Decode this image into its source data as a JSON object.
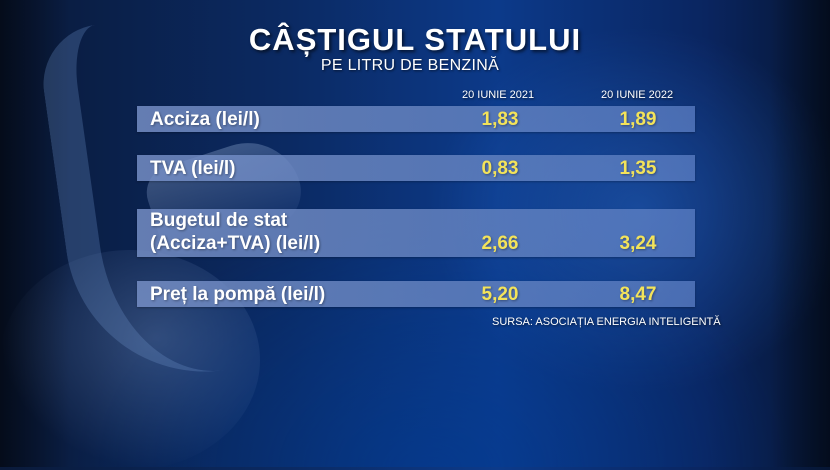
{
  "title": "CÂȘTIGUL STATULUI",
  "subtitle": "PE LITRU DE BENZINĂ",
  "columns": [
    "20 IUNIE 2021",
    "20 IUNIE 2022"
  ],
  "rows": [
    {
      "label": "Acciza (lei/l)",
      "v2021": "1,83",
      "v2022": "1,89"
    },
    {
      "label": "TVA (lei/l)",
      "v2021": "0,83",
      "v2022": "1,35"
    },
    {
      "label_line1": "Bugetul de stat",
      "label_line2": "(Acciza+TVA) (lei/l)",
      "v2021": "2,66",
      "v2022": "3,24"
    },
    {
      "label": "Preț la pompă (lei/l)",
      "v2021": "5,20",
      "v2022": "8,47"
    }
  ],
  "source": "SURSA: ASOCIAȚIA ENERGIA INTELIGENTĂ",
  "colors": {
    "label_text": "#ffffff",
    "value_text": "#f3e35a",
    "row_band": "#7891c8"
  }
}
